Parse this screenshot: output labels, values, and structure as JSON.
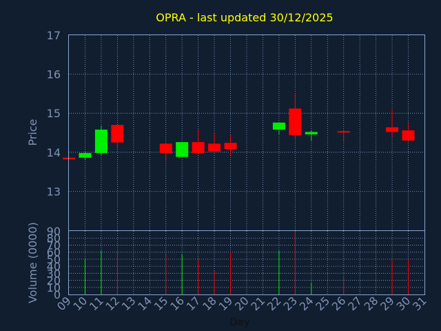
{
  "chart_data": {
    "type": "candlestick",
    "title": "OPRA - last updated 30/12/2025",
    "xlabel": "Day",
    "colors": {
      "background": "#111e30",
      "title": "#ffff00",
      "axis_text": "#7f93b3",
      "frame": "#8aa6d0",
      "grid": "#8aa6d0",
      "up": "#00ee00",
      "down": "#ff0000"
    },
    "x_ticks": [
      "09",
      "10",
      "11",
      "12",
      "13",
      "14",
      "15",
      "16",
      "17",
      "18",
      "19",
      "20",
      "21",
      "22",
      "23",
      "24",
      "25",
      "26",
      "27",
      "28",
      "29",
      "30",
      "31"
    ],
    "price_panel": {
      "ylabel": "Price",
      "ylim": [
        12.0,
        17.0
      ],
      "y_ticks": [
        "13",
        "14",
        "15",
        "16",
        "17"
      ],
      "candles": [
        {
          "day": "09",
          "open": 13.86,
          "high": 13.9,
          "low": 13.82,
          "close": 13.82
        },
        {
          "day": "10",
          "open": 13.86,
          "high": 14.0,
          "low": 13.8,
          "close": 13.98
        },
        {
          "day": "11",
          "open": 13.98,
          "high": 14.68,
          "low": 13.92,
          "close": 14.58
        },
        {
          "day": "12",
          "open": 14.7,
          "high": 14.7,
          "low": 14.1,
          "close": 14.25
        },
        {
          "day": "15",
          "open": 14.22,
          "high": 14.24,
          "low": 13.78,
          "close": 13.98
        },
        {
          "day": "16",
          "open": 13.88,
          "high": 14.26,
          "low": 13.88,
          "close": 14.26
        },
        {
          "day": "17",
          "open": 14.26,
          "high": 14.58,
          "low": 13.94,
          "close": 13.98
        },
        {
          "day": "18",
          "open": 14.22,
          "high": 14.5,
          "low": 14.0,
          "close": 14.02
        },
        {
          "day": "19",
          "open": 14.24,
          "high": 14.44,
          "low": 13.92,
          "close": 14.08
        },
        {
          "day": "22",
          "open": 14.58,
          "high": 14.76,
          "low": 14.46,
          "close": 14.76
        },
        {
          "day": "23",
          "open": 15.12,
          "high": 15.52,
          "low": 14.34,
          "close": 14.44
        },
        {
          "day": "24",
          "open": 14.46,
          "high": 14.56,
          "low": 14.3,
          "close": 14.52
        },
        {
          "day": "26",
          "open": 14.54,
          "high": 14.58,
          "low": 14.3,
          "close": 14.52
        },
        {
          "day": "29",
          "open": 14.64,
          "high": 15.1,
          "low": 14.4,
          "close": 14.52
        },
        {
          "day": "30",
          "open": 14.56,
          "high": 14.74,
          "low": 14.3,
          "close": 14.3
        }
      ]
    },
    "volume_panel": {
      "ylabel": "Volume (0000)",
      "ylim": [
        0,
        90
      ],
      "y_ticks": [
        "0",
        "10",
        "20",
        "30",
        "40",
        "50",
        "60",
        "70",
        "80",
        "90"
      ],
      "bars": [
        {
          "day": "10",
          "value": 50
        },
        {
          "day": "11",
          "value": 62
        },
        {
          "day": "12",
          "value": 62
        },
        {
          "day": "15",
          "value": 57
        },
        {
          "day": "16",
          "value": 57
        },
        {
          "day": "17",
          "value": 50
        },
        {
          "day": "18",
          "value": 33
        },
        {
          "day": "19",
          "value": 60
        },
        {
          "day": "22",
          "value": 62
        },
        {
          "day": "23",
          "value": 90
        },
        {
          "day": "24",
          "value": 17
        },
        {
          "day": "26",
          "value": 24
        },
        {
          "day": "29",
          "value": 50
        },
        {
          "day": "30",
          "value": 50
        }
      ]
    }
  }
}
